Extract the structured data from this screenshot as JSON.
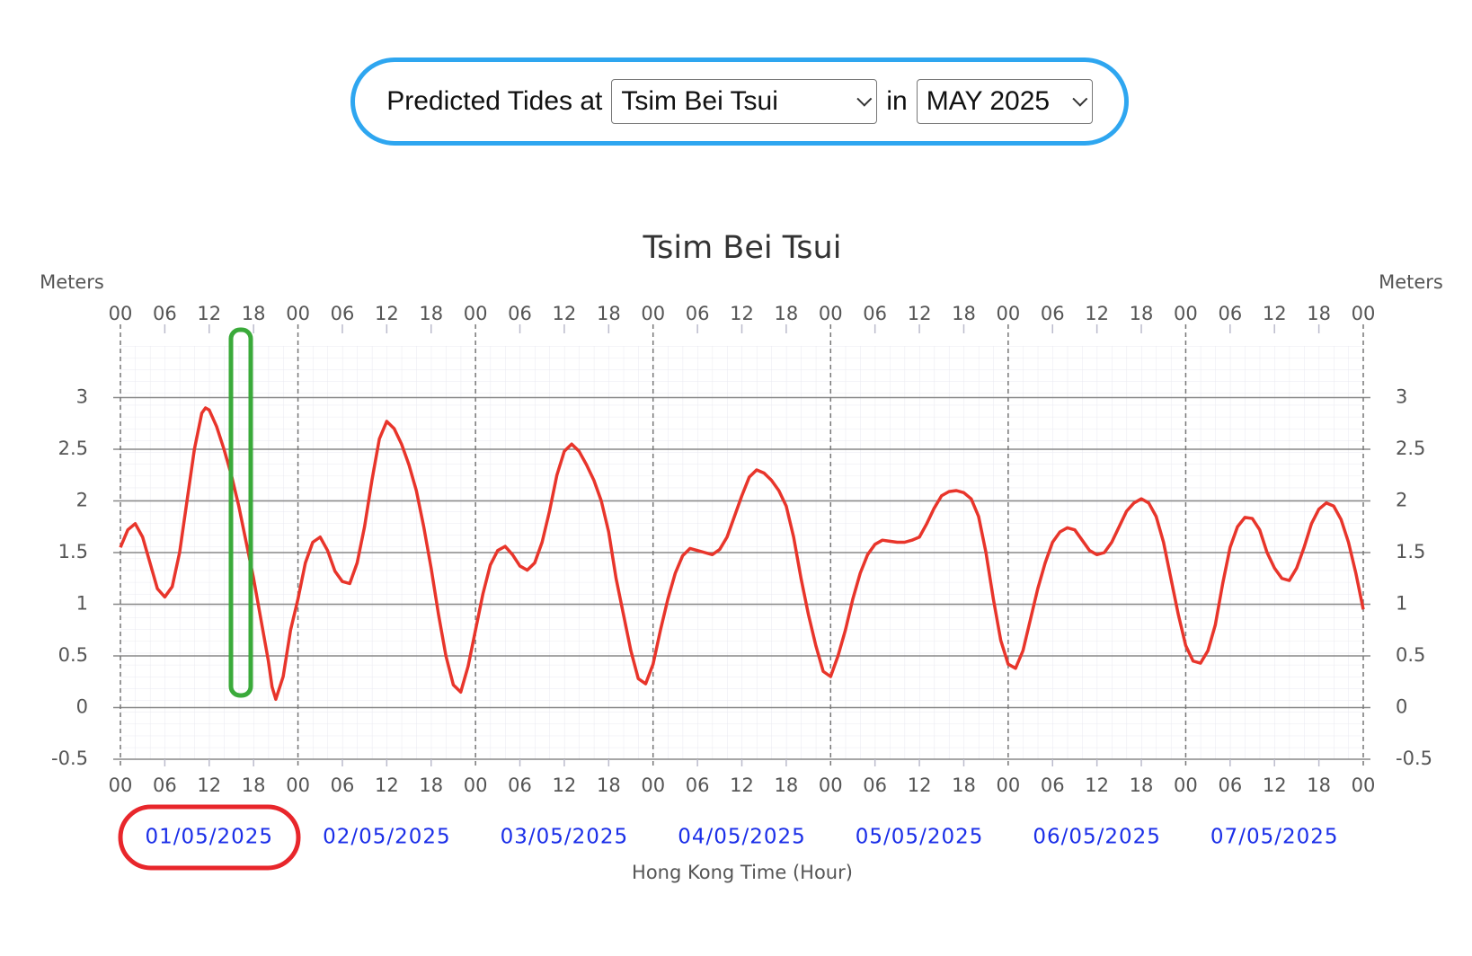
{
  "header": {
    "label": "Predicted Tides at",
    "station": "Tsim Bei Tsui",
    "joiner": "in",
    "month": "MAY 2025"
  },
  "chart_data": {
    "type": "line",
    "title": "Tsim Bei Tsui",
    "y_label": "Meters",
    "y2_label": "Meters",
    "x_label": "Hong Kong Time (Hour)",
    "dates": [
      "01/05/2025",
      "02/05/2025",
      "03/05/2025",
      "04/05/2025",
      "05/05/2025",
      "06/05/2025",
      "07/05/2025"
    ],
    "xlim": [
      0,
      168
    ],
    "xticks": [
      {
        "value": 0,
        "label": "00"
      },
      {
        "value": 6,
        "label": "06"
      },
      {
        "value": 12,
        "label": "12"
      },
      {
        "value": 18,
        "label": "18"
      },
      {
        "value": 24,
        "label": "00"
      },
      {
        "value": 30,
        "label": "06"
      },
      {
        "value": 36,
        "label": "12"
      },
      {
        "value": 42,
        "label": "18"
      },
      {
        "value": 48,
        "label": "00"
      },
      {
        "value": 54,
        "label": "06"
      },
      {
        "value": 60,
        "label": "12"
      },
      {
        "value": 66,
        "label": "18"
      },
      {
        "value": 72,
        "label": "00"
      },
      {
        "value": 78,
        "label": "06"
      },
      {
        "value": 84,
        "label": "12"
      },
      {
        "value": 90,
        "label": "18"
      },
      {
        "value": 96,
        "label": "00"
      },
      {
        "value": 102,
        "label": "06"
      },
      {
        "value": 108,
        "label": "12"
      },
      {
        "value": 114,
        "label": "18"
      },
      {
        "value": 120,
        "label": "00"
      },
      {
        "value": 126,
        "label": "06"
      },
      {
        "value": 132,
        "label": "12"
      },
      {
        "value": 138,
        "label": "18"
      },
      {
        "value": 144,
        "label": "00"
      },
      {
        "value": 150,
        "label": "06"
      },
      {
        "value": 156,
        "label": "12"
      },
      {
        "value": 162,
        "label": "18"
      },
      {
        "value": 168,
        "label": "00"
      }
    ],
    "ylim": [
      -0.5,
      3.5
    ],
    "yticks": [
      -0.5,
      0,
      0.5,
      1,
      1.5,
      2,
      2.5,
      3
    ],
    "grid": true,
    "series": [
      {
        "name": "Tide",
        "color": "#e8352b",
        "x": [
          0,
          1,
          2,
          3,
          4,
          5,
          6,
          7,
          8,
          9,
          10,
          11,
          11.5,
          12,
          13,
          14,
          15,
          16,
          17,
          18,
          19,
          20,
          20.5,
          21,
          22,
          23,
          24,
          25,
          26,
          27,
          28,
          29,
          30,
          31,
          32,
          33,
          34,
          35,
          36,
          37,
          38,
          39,
          40,
          41,
          42,
          43,
          44,
          45,
          46,
          47,
          48,
          49,
          50,
          51,
          52,
          53,
          54,
          55,
          56,
          57,
          58,
          59,
          60,
          61,
          62,
          63,
          64,
          65,
          66,
          67,
          68,
          69,
          70,
          71,
          72,
          73,
          74,
          75,
          76,
          77,
          78,
          79,
          80,
          81,
          82,
          83,
          84,
          85,
          86,
          87,
          88,
          89,
          90,
          91,
          92,
          93,
          94,
          95,
          96,
          97,
          98,
          99,
          100,
          101,
          102,
          103,
          104,
          105,
          106,
          107,
          108,
          109,
          110,
          111,
          112,
          113,
          114,
          115,
          116,
          117,
          118,
          119,
          120,
          121,
          122,
          123,
          124,
          125,
          126,
          127,
          128,
          129,
          130,
          131,
          132,
          133,
          134,
          135,
          136,
          137,
          138,
          139,
          140,
          141,
          142,
          143,
          144,
          145,
          146,
          147,
          148,
          149,
          150,
          151,
          152,
          153,
          154,
          155,
          156,
          157,
          158,
          159,
          160,
          161,
          162,
          163,
          164,
          165,
          166,
          167,
          168
        ],
        "values": [
          1.55,
          1.72,
          1.78,
          1.65,
          1.4,
          1.15,
          1.07,
          1.17,
          1.5,
          2.0,
          2.5,
          2.85,
          2.9,
          2.88,
          2.72,
          2.5,
          2.25,
          1.95,
          1.6,
          1.25,
          0.85,
          0.45,
          0.2,
          0.08,
          0.3,
          0.75,
          1.05,
          1.4,
          1.6,
          1.65,
          1.52,
          1.32,
          1.22,
          1.2,
          1.4,
          1.75,
          2.2,
          2.6,
          2.77,
          2.7,
          2.55,
          2.35,
          2.1,
          1.75,
          1.35,
          0.9,
          0.5,
          0.22,
          0.15,
          0.4,
          0.75,
          1.1,
          1.38,
          1.52,
          1.56,
          1.48,
          1.37,
          1.33,
          1.4,
          1.6,
          1.9,
          2.25,
          2.48,
          2.55,
          2.48,
          2.35,
          2.2,
          2.0,
          1.7,
          1.25,
          0.9,
          0.55,
          0.28,
          0.23,
          0.42,
          0.75,
          1.05,
          1.3,
          1.47,
          1.54,
          1.52,
          1.5,
          1.48,
          1.53,
          1.65,
          1.85,
          2.05,
          2.23,
          2.3,
          2.27,
          2.2,
          2.1,
          1.95,
          1.65,
          1.25,
          0.9,
          0.6,
          0.35,
          0.3,
          0.5,
          0.75,
          1.05,
          1.3,
          1.48,
          1.58,
          1.62,
          1.61,
          1.6,
          1.6,
          1.62,
          1.65,
          1.78,
          1.93,
          2.05,
          2.09,
          2.1,
          2.08,
          2.02,
          1.85,
          1.5,
          1.05,
          0.65,
          0.42,
          0.38,
          0.55,
          0.85,
          1.15,
          1.4,
          1.6,
          1.7,
          1.74,
          1.72,
          1.62,
          1.52,
          1.48,
          1.5,
          1.6,
          1.75,
          1.9,
          1.98,
          2.02,
          1.98,
          1.85,
          1.6,
          1.25,
          0.9,
          0.6,
          0.45,
          0.43,
          0.55,
          0.8,
          1.2,
          1.55,
          1.75,
          1.84,
          1.83,
          1.72,
          1.5,
          1.35,
          1.25,
          1.23,
          1.35,
          1.55,
          1.78,
          1.92,
          1.98,
          1.95,
          1.82,
          1.6,
          1.3,
          0.95
        ]
      }
    ]
  }
}
